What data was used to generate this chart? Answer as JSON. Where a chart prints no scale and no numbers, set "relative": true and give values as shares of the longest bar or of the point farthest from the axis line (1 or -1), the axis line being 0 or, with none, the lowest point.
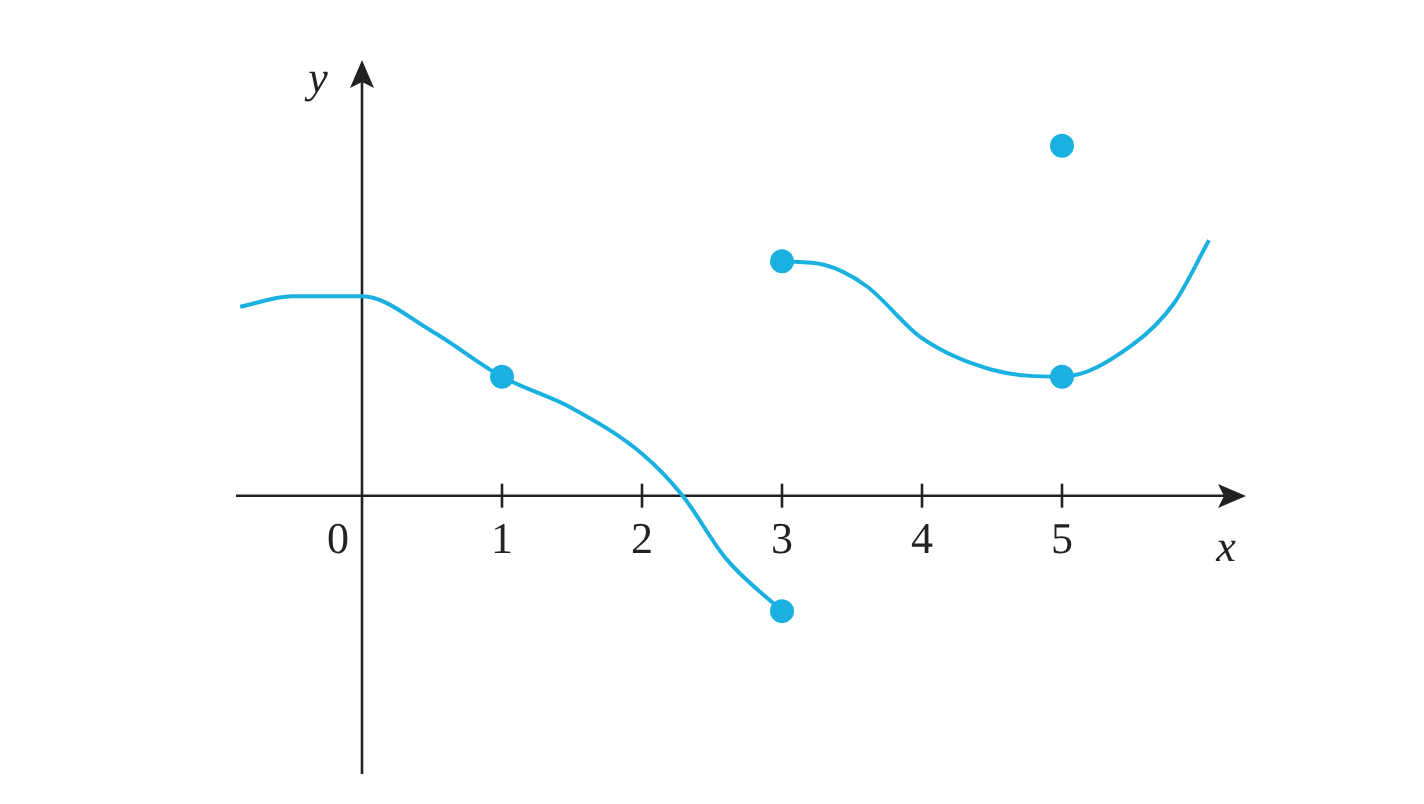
{
  "chart_data": {
    "type": "line",
    "relative": true,
    "xlabel": "x",
    "ylabel": "y",
    "xlim": [
      -0.9,
      6.2
    ],
    "xticks": [
      0,
      1,
      2,
      3,
      4,
      5
    ],
    "series": [
      {
        "marker": "none",
        "color": "#1ab0e0",
        "x": [
          -0.87,
          -0.5,
          0,
          0.5,
          1,
          1.5,
          2,
          2.29,
          2.6,
          3
        ],
        "values": [
          0.54,
          0.57,
          0.57,
          0.47,
          0.34,
          0.25,
          0.12,
          0,
          -0.18,
          -0.33
        ]
      },
      {
        "marker": "none",
        "color": "#1ab0e0",
        "x": [
          3,
          3.3,
          3.6,
          4,
          4.5,
          5,
          5.5,
          5.8,
          6.05
        ],
        "values": [
          0.67,
          0.66,
          0.6,
          0.45,
          0.36,
          0.34,
          0.43,
          0.55,
          0.73
        ]
      },
      {
        "type": "scatter",
        "marker": "circle",
        "color": "#1ab0e0",
        "x": [
          1,
          3,
          3,
          5,
          5
        ],
        "values": [
          0.34,
          -0.33,
          0.67,
          0.34,
          1
        ]
      }
    ]
  }
}
